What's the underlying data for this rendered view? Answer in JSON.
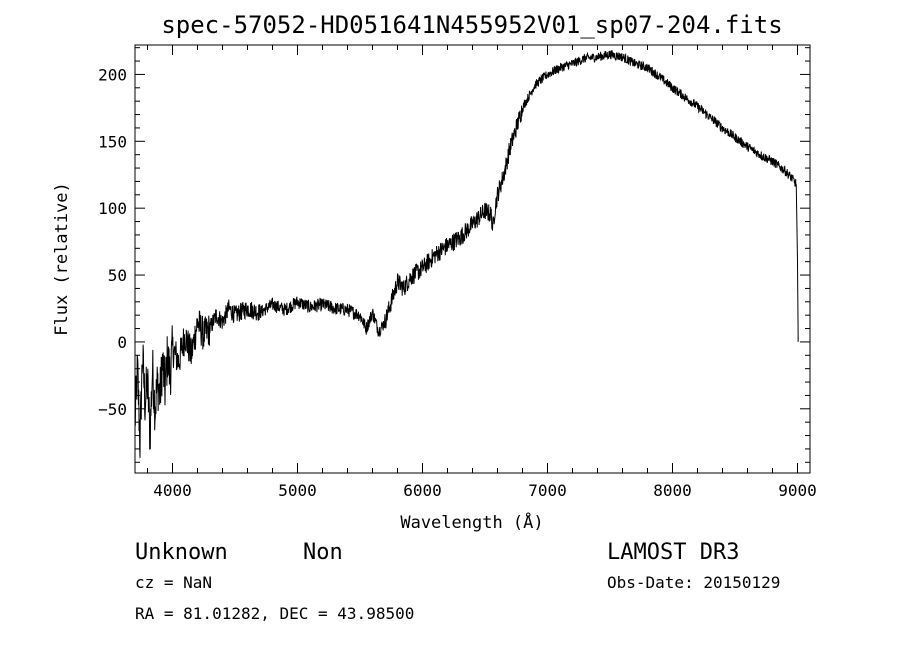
{
  "chart_data": {
    "type": "line",
    "title": "spec-57052-HD051641N455952V01_sp07-204.fits",
    "xlabel": "Wavelength (Å)",
    "ylabel": "Flux (relative)",
    "xlim": [
      3700,
      9100
    ],
    "ylim": [
      -98,
      222
    ],
    "xticks": [
      4000,
      5000,
      6000,
      7000,
      8000,
      9000
    ],
    "yticks": [
      -50,
      0,
      50,
      100,
      150,
      200
    ],
    "grid": false,
    "series": [
      {
        "color": "#000000",
        "x": [
          3700,
          3720,
          3740,
          3760,
          3780,
          3800,
          3820,
          3840,
          3860,
          3880,
          3900,
          3920,
          3940,
          3960,
          3980,
          4000,
          4050,
          4100,
          4150,
          4200,
          4250,
          4300,
          4350,
          4400,
          4450,
          4500,
          4600,
          4700,
          4800,
          4900,
          5000,
          5100,
          5200,
          5300,
          5400,
          5500,
          5550,
          5600,
          5650,
          5700,
          5750,
          5800,
          5850,
          5900,
          6000,
          6100,
          6200,
          6300,
          6400,
          6500,
          6550,
          6562,
          6580,
          6600,
          6650,
          6700,
          6800,
          6900,
          7000,
          7100,
          7200,
          7300,
          7400,
          7500,
          7600,
          7700,
          7800,
          7900,
          8000,
          8100,
          8200,
          8300,
          8400,
          8500,
          8600,
          8700,
          8800,
          8900,
          8950,
          8990,
          9000,
          9005
        ],
        "y": [
          -60,
          -20,
          -75,
          -10,
          -45,
          -30,
          -70,
          -20,
          -50,
          -30,
          -40,
          -15,
          -35,
          -10,
          -25,
          -5,
          -15,
          5,
          -10,
          15,
          5,
          10,
          20,
          15,
          25,
          20,
          25,
          22,
          28,
          24,
          30,
          26,
          28,
          25,
          24,
          20,
          10,
          22,
          8,
          15,
          30,
          45,
          40,
          48,
          55,
          65,
          72,
          78,
          88,
          98,
          95,
          85,
          100,
          110,
          125,
          145,
          175,
          192,
          200,
          205,
          208,
          212,
          213,
          215,
          213,
          208,
          205,
          198,
          190,
          183,
          176,
          168,
          160,
          153,
          146,
          140,
          135,
          128,
          123,
          118,
          60,
          5
        ]
      }
    ]
  },
  "footer": {
    "object_class": "Unknown",
    "object_subclass": "Non",
    "cz": "cz = NaN",
    "coords": "RA =  81.01282, DEC =  43.98500",
    "survey": "LAMOST DR3",
    "obs_date": "Obs-Date: 20150129"
  }
}
